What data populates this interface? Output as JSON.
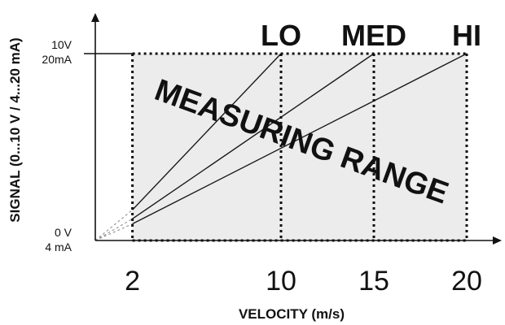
{
  "chart_data": {
    "type": "line",
    "xlabel": "VELOCITY (m/s)",
    "ylabel": "SIGNAL (0...10 V / 4...20 mA)",
    "x_ticks": [
      2,
      10,
      15,
      20
    ],
    "y_ticks": [
      {
        "value": 0,
        "label_lines": [
          "0 V",
          "4 mA"
        ]
      },
      {
        "value": 10,
        "label_lines": [
          "10V",
          "20mA"
        ]
      }
    ],
    "xlim": [
      0,
      22
    ],
    "ylim": [
      0,
      10
    ],
    "grid": false,
    "shaded_region": {
      "label": "MEASURING RANGE",
      "x": [
        2,
        20
      ],
      "y": [
        0,
        10
      ],
      "color": "#ececec"
    },
    "series": [
      {
        "name": "LO",
        "points": [
          [
            0,
            0
          ],
          [
            2,
            1.64
          ],
          [
            10,
            10
          ]
        ]
      },
      {
        "name": "MED",
        "points": [
          [
            0,
            0
          ],
          [
            2,
            1.16
          ],
          [
            15,
            10
          ]
        ]
      },
      {
        "name": "HI",
        "points": [
          [
            0,
            0
          ],
          [
            2,
            0.89
          ],
          [
            20,
            10
          ]
        ]
      }
    ],
    "colors": {
      "line": "#1a1a1a",
      "extension": "#9a9a9a",
      "dots": "#111111"
    }
  }
}
